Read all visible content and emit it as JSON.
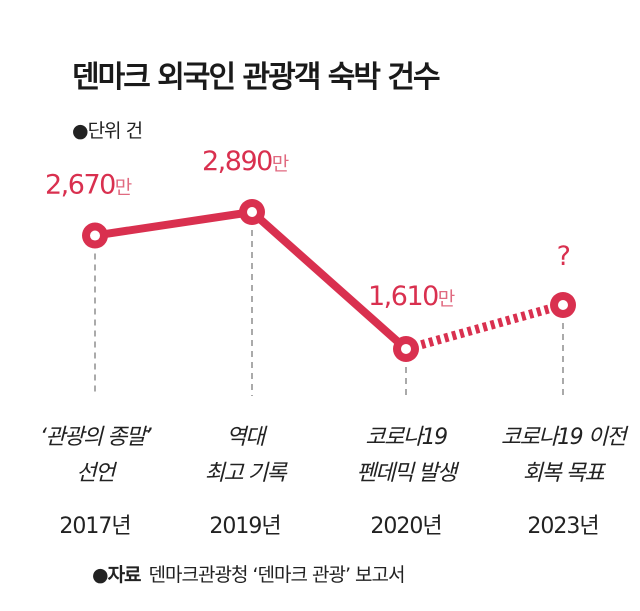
{
  "chart_data": {
    "type": "line",
    "title": "덴마크 외국인 관광객 숙박 건수",
    "unit_note": "●단위 건",
    "categories": [
      "2017년",
      "2019년",
      "2020년",
      "2023년"
    ],
    "annotations": [
      "‘관광의 종말’\n선언",
      "역대\n최고 기록",
      "코로나19\n펜데믹 발생",
      "코로나19 이전\n회복 목표"
    ],
    "values": [
      2670,
      2890,
      1610,
      null
    ],
    "data_labels": [
      "2,670",
      "2,890",
      "1,610",
      "?"
    ],
    "data_label_unit": "만",
    "segment_styles": [
      "solid",
      "solid",
      "dashed"
    ],
    "color": "#d9304f",
    "grid": false,
    "source_label": "●자료",
    "source_text": "덴마크관광청 ‘덴마크 관광’ 보고서"
  }
}
